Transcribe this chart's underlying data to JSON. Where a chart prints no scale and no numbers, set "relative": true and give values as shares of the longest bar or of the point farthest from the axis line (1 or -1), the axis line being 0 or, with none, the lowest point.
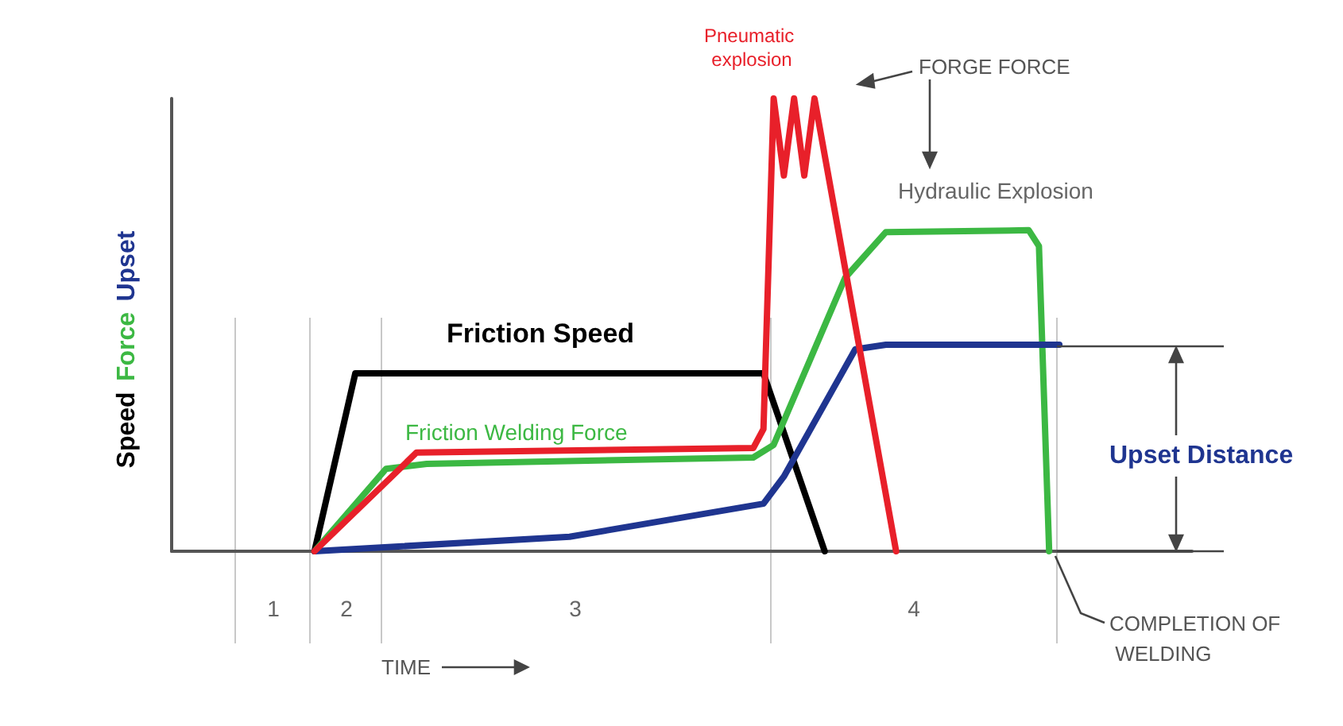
{
  "chart_data": {
    "type": "line",
    "relative": true,
    "ylabel": "Speed Force Upset",
    "grid": false,
    "legend": false,
    "marker": "none",
    "line_style": "solid",
    "annotations": [
      "FORGE FORCE",
      "Hydraulic Explosion",
      "COMPLETION OF WELDING",
      "1",
      "2",
      "3",
      "4",
      "TIME"
    ],
    "categories": [
      null,
      null,
      null,
      null,
      null,
      null,
      null,
      null,
      null,
      null,
      null,
      null,
      null,
      null,
      null,
      null,
      null,
      null,
      null,
      null,
      null,
      null,
      null,
      null,
      null,
      null,
      null,
      null,
      null,
      null,
      null,
      null,
      null,
      null,
      null,
      null,
      null,
      null,
      null,
      null,
      null,
      null,
      null,
      null,
      null,
      null,
      null,
      null,
      null,
      null,
      null,
      null,
      null,
      null,
      null,
      null,
      null,
      null,
      null,
      null,
      null,
      null,
      null,
      null,
      null,
      null,
      null,
      null,
      null,
      null,
      null,
      null,
      null,
      null,
      null,
      null,
      null,
      null,
      null,
      null,
      null,
      null,
      null,
      null,
      null,
      null,
      null,
      null,
      null,
      null,
      null,
      null,
      null,
      null,
      null,
      null,
      null,
      null,
      null,
      null,
      null
    ],
    "series": [
      {
        "name": "Friction Speed",
        "color": "#000000",
        "values": [
          null,
          null,
          null,
          null,
          null,
          null,
          null,
          null,
          null,
          null,
          null,
          null,
          null,
          null,
          0,
          null,
          null,
          null,
          0.393,
          null,
          null,
          null,
          null,
          null,
          null,
          null,
          null,
          null,
          null,
          null,
          null,
          null,
          null,
          null,
          null,
          null,
          null,
          null,
          null,
          null,
          null,
          null,
          null,
          null,
          null,
          null,
          null,
          null,
          null,
          null,
          null,
          null,
          null,
          null,
          null,
          null,
          null,
          null,
          0.393,
          null,
          null,
          null,
          null,
          null,
          0,
          null,
          null,
          null,
          null,
          null,
          null,
          null,
          null,
          null,
          null,
          null,
          null,
          null,
          null,
          null,
          null,
          null,
          null,
          null,
          null,
          null,
          null,
          null,
          null,
          null,
          null,
          null,
          null,
          null,
          null,
          null,
          null,
          null,
          null,
          null,
          null
        ]
      },
      {
        "name": "Friction Welding Force",
        "color": "#3cb843",
        "values": [
          null,
          null,
          null,
          null,
          null,
          null,
          null,
          null,
          null,
          null,
          null,
          null,
          null,
          null,
          0,
          null,
          null,
          null,
          null,
          null,
          null,
          0.182,
          null,
          null,
          null,
          0.193,
          null,
          null,
          null,
          null,
          null,
          null,
          null,
          null,
          null,
          null,
          null,
          null,
          null,
          null,
          null,
          null,
          null,
          null,
          null,
          null,
          null,
          null,
          null,
          null,
          null,
          null,
          null,
          null,
          null,
          null,
          null,
          0.207,
          null,
          0.235,
          null,
          null,
          null,
          null,
          null,
          null,
          0.604,
          null,
          null,
          null,
          0.705,
          null,
          null,
          null,
          null,
          null,
          null,
          null,
          null,
          null,
          null,
          null,
          null,
          null,
          0.709,
          0.674,
          0,
          null,
          null,
          null,
          null,
          null,
          null,
          null,
          null,
          null,
          null,
          null,
          null,
          null,
          null
        ]
      },
      {
        "name": "Upset Distance",
        "color": "#1f3590",
        "values": [
          null,
          null,
          null,
          null,
          null,
          null,
          null,
          null,
          null,
          null,
          null,
          null,
          null,
          null,
          0,
          null,
          null,
          null,
          null,
          null,
          null,
          null,
          null,
          null,
          null,
          null,
          null,
          null,
          null,
          null,
          null,
          null,
          null,
          null,
          null,
          null,
          null,
          null,
          null,
          0.032,
          null,
          null,
          null,
          null,
          null,
          null,
          null,
          null,
          null,
          null,
          null,
          null,
          null,
          null,
          null,
          null,
          null,
          null,
          0.105,
          null,
          0.165,
          null,
          null,
          null,
          null,
          null,
          null,
          0.446,
          null,
          null,
          0.456,
          null,
          null,
          null,
          null,
          null,
          null,
          null,
          null,
          null,
          null,
          null,
          null,
          null,
          null,
          null,
          null,
          0.456,
          null,
          null,
          null,
          null,
          null,
          null,
          null,
          null,
          null,
          null,
          null,
          null,
          null
        ]
      },
      {
        "name": "Pneumatic explosion",
        "color": "#e8202a",
        "values": [
          null,
          null,
          null,
          null,
          null,
          null,
          null,
          null,
          null,
          null,
          null,
          null,
          null,
          null,
          0,
          null,
          null,
          null,
          null,
          null,
          null,
          null,
          null,
          null,
          0.218,
          null,
          null,
          null,
          null,
          null,
          null,
          null,
          null,
          null,
          null,
          null,
          null,
          null,
          null,
          null,
          null,
          null,
          null,
          null,
          null,
          null,
          null,
          null,
          null,
          null,
          null,
          null,
          null,
          null,
          null,
          null,
          null,
          0.228,
          0.27,
          1,
          0.83,
          1,
          0.83,
          1,
          null,
          null,
          null,
          null,
          null,
          null,
          null,
          0,
          null,
          null,
          null,
          null,
          null,
          null,
          null,
          null,
          null,
          null,
          null,
          null,
          null,
          null,
          null,
          null,
          null,
          null,
          null,
          null,
          null,
          null,
          null,
          null,
          null,
          null,
          null,
          null,
          null
        ]
      }
    ]
  }
}
